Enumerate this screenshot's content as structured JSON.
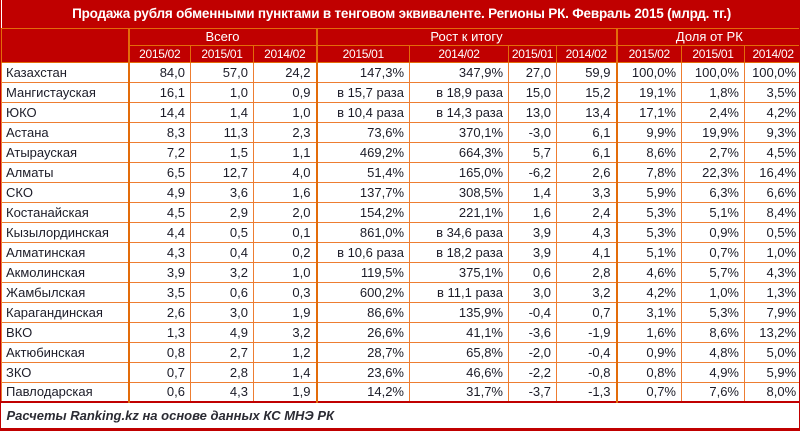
{
  "title": "Продажа рубля обменными пунктами в тенговом эквиваленте. Регионы РК. Февраль 2015 (млрд. тг.)",
  "footer": "Расчеты Ranking.kz на основе данных КС МНЭ РК",
  "colors": {
    "header_bg": "#C00000",
    "border_orange": "#ED7D31",
    "section_border": "#E36C0A",
    "text_dark": "#1C1C28",
    "header_text": "#FFFFFF"
  },
  "table": {
    "groups": [
      {
        "label": "Всего",
        "span": 3
      },
      {
        "label": "Рост к итогу",
        "span": 4
      },
      {
        "label": "Доля от РК",
        "span": 3
      }
    ],
    "subheaders": [
      "2015/02",
      "2015/01",
      "2014/02",
      "2015/01",
      "2014/02",
      "2015/01",
      "2014/02",
      "2015/02",
      "2015/01",
      "2014/02"
    ]
  },
  "chart_data": {
    "type": "table",
    "title": "Продажа рубля обменными пунктами в тенговом эквиваленте. Регионы РК. Февраль 2015 (млрд. тг.)",
    "column_groups": [
      "Всего",
      "Всего",
      "Всего",
      "Рост к итогу",
      "Рост к итогу",
      "Рост к итогу",
      "Рост к итогу",
      "Доля от РК",
      "Доля от РК",
      "Доля от РК"
    ],
    "columns": [
      "2015/02",
      "2015/01",
      "2014/02",
      "2015/01",
      "2014/02",
      "2015/01",
      "2014/02",
      "2015/02",
      "2015/01",
      "2014/02"
    ],
    "rows": [
      {
        "region": "Казахстан",
        "values": [
          "84,0",
          "57,0",
          "24,2",
          "147,3%",
          "347,9%",
          "27,0",
          "59,9",
          "100,0%",
          "100,0%",
          "100,0%"
        ]
      },
      {
        "region": "Мангистауская",
        "values": [
          "16,1",
          "1,0",
          "0,9",
          "в 15,7 раза",
          "в 18,9 раза",
          "15,0",
          "15,2",
          "19,1%",
          "1,8%",
          "3,5%"
        ]
      },
      {
        "region": "ЮКО",
        "values": [
          "14,4",
          "1,4",
          "1,0",
          "в 10,4 раза",
          "в 14,3 раза",
          "13,0",
          "13,4",
          "17,1%",
          "2,4%",
          "4,2%"
        ]
      },
      {
        "region": "Астана",
        "values": [
          "8,3",
          "11,3",
          "2,3",
          "73,6%",
          "370,1%",
          "-3,0",
          "6,1",
          "9,9%",
          "19,9%",
          "9,3%"
        ]
      },
      {
        "region": "Атырауская",
        "values": [
          "7,2",
          "1,5",
          "1,1",
          "469,2%",
          "664,3%",
          "5,7",
          "6,1",
          "8,6%",
          "2,7%",
          "4,5%"
        ]
      },
      {
        "region": "Алматы",
        "values": [
          "6,5",
          "12,7",
          "4,0",
          "51,4%",
          "165,0%",
          "-6,2",
          "2,6",
          "7,8%",
          "22,3%",
          "16,4%"
        ]
      },
      {
        "region": "СКО",
        "values": [
          "4,9",
          "3,6",
          "1,6",
          "137,7%",
          "308,5%",
          "1,4",
          "3,3",
          "5,9%",
          "6,3%",
          "6,6%"
        ]
      },
      {
        "region": "Костанайская",
        "values": [
          "4,5",
          "2,9",
          "2,0",
          "154,2%",
          "221,1%",
          "1,6",
          "2,4",
          "5,3%",
          "5,1%",
          "8,4%"
        ]
      },
      {
        "region": "Кызылординская",
        "values": [
          "4,4",
          "0,5",
          "0,1",
          "861,0%",
          "в 34,6 раза",
          "3,9",
          "4,3",
          "5,3%",
          "0,9%",
          "0,5%"
        ]
      },
      {
        "region": "Алматинская",
        "values": [
          "4,3",
          "0,4",
          "0,2",
          "в 10,6 раза",
          "в 18,2 раза",
          "3,9",
          "4,1",
          "5,1%",
          "0,7%",
          "1,0%"
        ]
      },
      {
        "region": "Акмолинская",
        "values": [
          "3,9",
          "3,2",
          "1,0",
          "119,5%",
          "375,1%",
          "0,6",
          "2,8",
          "4,6%",
          "5,7%",
          "4,3%"
        ]
      },
      {
        "region": "Жамбылская",
        "values": [
          "3,5",
          "0,6",
          "0,3",
          "600,2%",
          "в 11,1 раза",
          "3,0",
          "3,2",
          "4,2%",
          "1,0%",
          "1,3%"
        ]
      },
      {
        "region": "Карагандинская",
        "values": [
          "2,6",
          "3,0",
          "1,9",
          "86,6%",
          "135,9%",
          "-0,4",
          "0,7",
          "3,1%",
          "5,3%",
          "7,9%"
        ]
      },
      {
        "region": "ВКО",
        "values": [
          "1,3",
          "4,9",
          "3,2",
          "26,6%",
          "41,1%",
          "-3,6",
          "-1,9",
          "1,6%",
          "8,6%",
          "13,2%"
        ]
      },
      {
        "region": "Актюбинская",
        "values": [
          "0,8",
          "2,7",
          "1,2",
          "28,7%",
          "65,8%",
          "-2,0",
          "-0,4",
          "0,9%",
          "4,8%",
          "5,0%"
        ]
      },
      {
        "region": "ЗКО",
        "values": [
          "0,7",
          "2,8",
          "1,4",
          "23,6%",
          "46,6%",
          "-2,2",
          "-0,8",
          "0,8%",
          "4,9%",
          "5,9%"
        ]
      },
      {
        "region": "Павлодарская",
        "values": [
          "0,6",
          "4,3",
          "1,9",
          "14,2%",
          "31,7%",
          "-3,7",
          "-1,3",
          "0,7%",
          "7,6%",
          "8,0%"
        ]
      }
    ]
  }
}
